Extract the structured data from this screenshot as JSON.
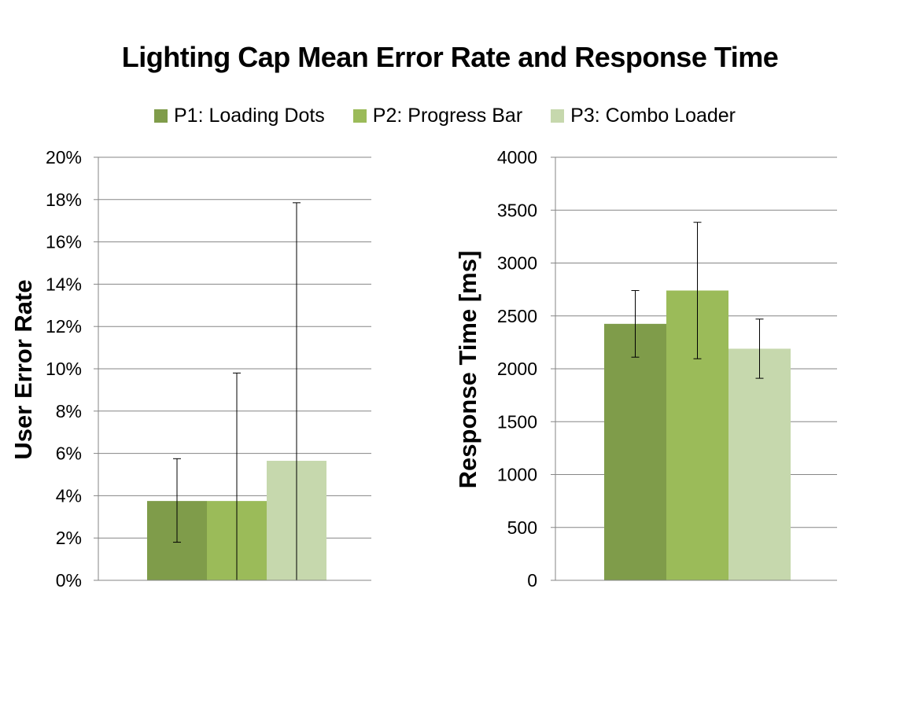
{
  "figure": {
    "title": "Lighting Cap Mean Error Rate and Response Time"
  },
  "legend": {
    "items": [
      {
        "label": "P1: Loading Dots",
        "color": "#7f9c4a"
      },
      {
        "label": "P2: Progress Bar",
        "color": "#9bbb59"
      },
      {
        "label": "P3: Combo Loader",
        "color": "#c6d8ad"
      }
    ]
  },
  "chart_data": [
    {
      "type": "bar",
      "title": "",
      "xlabel": "",
      "ylabel": "User Error Rate",
      "ylim": [
        0,
        20
      ],
      "ytick_step": 2,
      "ytick_labels": [
        "0%",
        "2%",
        "4%",
        "6%",
        "8%",
        "10%",
        "12%",
        "14%",
        "16%",
        "18%",
        "20%"
      ],
      "grid": true,
      "categories": [
        ""
      ],
      "series": [
        {
          "name": "P1: Loading Dots",
          "color": "#7f9c4a",
          "values": [
            3.75
          ],
          "error_low": [
            1.8
          ],
          "error_high": [
            5.75
          ]
        },
        {
          "name": "P2: Progress Bar",
          "color": "#9bbb59",
          "values": [
            3.75
          ],
          "error_low": [
            0
          ],
          "error_high": [
            9.8
          ]
        },
        {
          "name": "P3: Combo Loader",
          "color": "#c6d8ad",
          "values": [
            5.65
          ],
          "error_low": [
            0
          ],
          "error_high": [
            17.85
          ]
        }
      ]
    },
    {
      "type": "bar",
      "title": "",
      "xlabel": "",
      "ylabel": "Response Time [ms]",
      "ylim": [
        0,
        4000
      ],
      "ytick_step": 500,
      "ytick_labels": [
        "0",
        "500",
        "1000",
        "1500",
        "2000",
        "2500",
        "3000",
        "3500",
        "4000"
      ],
      "grid": true,
      "categories": [
        ""
      ],
      "series": [
        {
          "name": "P1: Loading Dots",
          "color": "#7f9c4a",
          "values": [
            2425
          ],
          "error_low": [
            2110
          ],
          "error_high": [
            2740
          ]
        },
        {
          "name": "P2: Progress Bar",
          "color": "#9bbb59",
          "values": [
            2740
          ],
          "error_low": [
            2095
          ],
          "error_high": [
            3385
          ]
        },
        {
          "name": "P3: Combo Loader",
          "color": "#c6d8ad",
          "values": [
            2190
          ],
          "error_low": [
            1910
          ],
          "error_high": [
            2470
          ]
        }
      ]
    }
  ]
}
